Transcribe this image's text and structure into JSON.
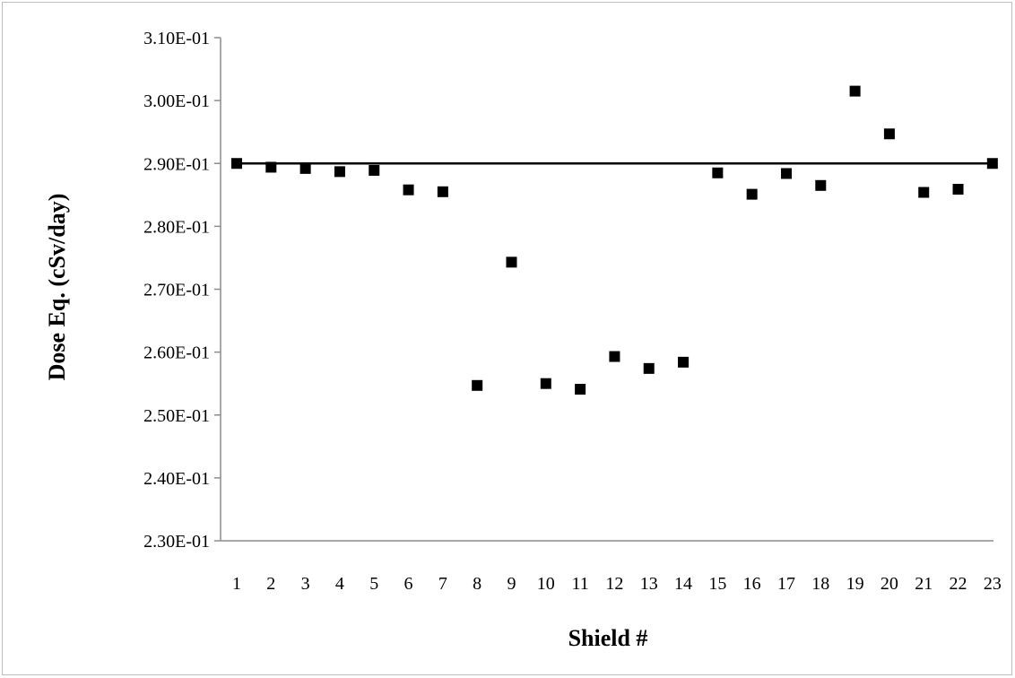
{
  "chart_data": {
    "type": "scatter",
    "title": "",
    "xlabel": "Shield #",
    "ylabel": "Dose Eq. (cSv/day)",
    "categories": [
      "1",
      "2",
      "3",
      "4",
      "5",
      "6",
      "7",
      "8",
      "9",
      "10",
      "11",
      "12",
      "13",
      "14",
      "15",
      "16",
      "17",
      "18",
      "19",
      "20",
      "21",
      "22",
      "23"
    ],
    "ylim": [
      0.23,
      0.31
    ],
    "yticks": [
      0.23,
      0.24,
      0.25,
      0.26,
      0.27,
      0.28,
      0.29,
      0.3,
      0.31
    ],
    "ytick_labels": [
      "2.30E-01",
      "2.40E-01",
      "2.50E-01",
      "2.60E-01",
      "2.70E-01",
      "2.80E-01",
      "2.90E-01",
      "3.00E-01",
      "3.10E-01"
    ],
    "grid": false,
    "legend": "none",
    "series": [
      {
        "marker": "square",
        "color": "#000000",
        "values": [
          0.29,
          0.2894,
          0.2892,
          0.2887,
          0.2889,
          0.2858,
          0.2855,
          0.2547,
          0.2743,
          0.255,
          0.2541,
          0.2593,
          0.2574,
          0.2584,
          0.2885,
          0.2851,
          0.2884,
          0.2865,
          0.3015,
          0.2947,
          0.2854,
          0.2859,
          0.29
        ]
      }
    ],
    "reference_line": {
      "value": 0.29,
      "color": "#000000"
    }
  }
}
